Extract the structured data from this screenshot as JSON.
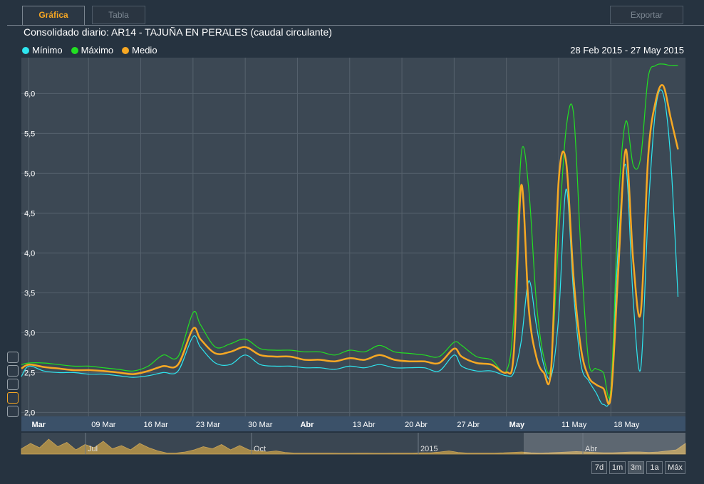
{
  "tabs": [
    {
      "label": "Gráfica",
      "active": true
    },
    {
      "label": "Tabla",
      "active": false
    }
  ],
  "export_label": "Exportar",
  "date_range": "28 Feb 2015 - 27 May 2015",
  "range_buttons": [
    {
      "label": "7d",
      "selected": false
    },
    {
      "label": "1m",
      "selected": false
    },
    {
      "label": "3m",
      "selected": true
    },
    {
      "label": "1a",
      "selected": false
    },
    {
      "label": "Máx",
      "selected": false
    }
  ],
  "side_icons": [
    "chart-type-icon",
    "line-chart-icon",
    "bar-chart-icon",
    "area-chart-icon",
    "max-icon"
  ],
  "navigator": {
    "labels": [
      "Jul",
      "Oct",
      "2015",
      "Abr"
    ]
  },
  "chart_data": {
    "type": "line",
    "title": "Consolidado diario: AR14 - TAJUÑA EN PERALES (caudal circulante)",
    "x_tick_labels": [
      {
        "date": "2015-03-01",
        "label": "Mar",
        "bold": true
      },
      {
        "date": "2015-03-09",
        "label": "09 Mar",
        "bold": false
      },
      {
        "date": "2015-03-16",
        "label": "16 Mar",
        "bold": false
      },
      {
        "date": "2015-03-23",
        "label": "23 Mar",
        "bold": false
      },
      {
        "date": "2015-03-30",
        "label": "30 Mar",
        "bold": false
      },
      {
        "date": "2015-04-06",
        "label": "Abr",
        "bold": true
      },
      {
        "date": "2015-04-13",
        "label": "13 Abr",
        "bold": false
      },
      {
        "date": "2015-04-20",
        "label": "20 Abr",
        "bold": false
      },
      {
        "date": "2015-04-27",
        "label": "27 Abr",
        "bold": false
      },
      {
        "date": "2015-05-04",
        "label": "May",
        "bold": true
      },
      {
        "date": "2015-05-11",
        "label": "11 May",
        "bold": false
      },
      {
        "date": "2015-05-18",
        "label": "18 May",
        "bold": false
      }
    ],
    "y_tick_labels": [
      "2,0",
      "2,5",
      "3,0",
      "3,5",
      "4,0",
      "4,5",
      "5,0",
      "5,5",
      "6,0"
    ],
    "ylim": [
      1.95,
      6.45
    ],
    "xlim": [
      "2015-02-28",
      "2015-05-28"
    ],
    "grid": true,
    "legend_position": "top-left",
    "x": [
      "2015-02-28",
      "2015-03-01",
      "2015-03-03",
      "2015-03-05",
      "2015-03-07",
      "2015-03-09",
      "2015-03-11",
      "2015-03-13",
      "2015-03-15",
      "2015-03-17",
      "2015-03-19",
      "2015-03-21",
      "2015-03-23",
      "2015-03-24",
      "2015-03-26",
      "2015-03-28",
      "2015-03-30",
      "2015-04-01",
      "2015-04-03",
      "2015-04-05",
      "2015-04-07",
      "2015-04-09",
      "2015-04-11",
      "2015-04-13",
      "2015-04-15",
      "2015-04-17",
      "2015-04-19",
      "2015-04-21",
      "2015-04-23",
      "2015-04-25",
      "2015-04-27",
      "2015-04-28",
      "2015-04-30",
      "2015-05-02",
      "2015-05-04",
      "2015-05-05",
      "2015-05-06",
      "2015-05-07",
      "2015-05-08",
      "2015-05-09",
      "2015-05-10",
      "2015-05-11",
      "2015-05-12",
      "2015-05-13",
      "2015-05-14",
      "2015-05-15",
      "2015-05-16",
      "2015-05-17",
      "2015-05-18",
      "2015-05-19",
      "2015-05-20",
      "2015-05-21",
      "2015-05-22",
      "2015-05-23",
      "2015-05-24",
      "2015-05-25",
      "2015-05-26",
      "2015-05-27"
    ],
    "series": [
      {
        "name": "Mínimo",
        "color": "#2ee6f0",
        "values": [
          2.45,
          2.58,
          2.52,
          2.5,
          2.5,
          2.48,
          2.48,
          2.46,
          2.44,
          2.46,
          2.5,
          2.52,
          2.95,
          2.82,
          2.62,
          2.6,
          2.72,
          2.6,
          2.58,
          2.58,
          2.56,
          2.56,
          2.54,
          2.58,
          2.56,
          2.6,
          2.56,
          2.56,
          2.56,
          2.52,
          2.72,
          2.58,
          2.52,
          2.52,
          2.46,
          2.5,
          2.9,
          3.65,
          3.1,
          2.6,
          2.45,
          3.2,
          4.8,
          3.5,
          2.6,
          2.4,
          2.25,
          2.1,
          2.3,
          4.1,
          5.1,
          3.4,
          2.55,
          4.5,
          5.8,
          6.0,
          5.2,
          3.45
        ]
      },
      {
        "name": "Máximo",
        "color": "#22e022",
        "values": [
          2.6,
          2.62,
          2.62,
          2.6,
          2.58,
          2.58,
          2.56,
          2.54,
          2.52,
          2.58,
          2.72,
          2.7,
          3.25,
          3.1,
          2.82,
          2.86,
          2.92,
          2.8,
          2.78,
          2.78,
          2.76,
          2.76,
          2.72,
          2.78,
          2.76,
          2.84,
          2.76,
          2.74,
          2.72,
          2.7,
          2.88,
          2.84,
          2.7,
          2.66,
          2.52,
          3.2,
          5.25,
          4.8,
          3.4,
          2.7,
          2.6,
          4.2,
          5.55,
          5.75,
          4.0,
          2.65,
          2.55,
          2.5,
          2.3,
          4.6,
          5.65,
          5.1,
          5.2,
          6.2,
          6.35,
          6.37,
          6.35,
          6.35
        ]
      },
      {
        "name": "Medio",
        "color": "#f7a823",
        "values": [
          2.55,
          2.6,
          2.57,
          2.55,
          2.53,
          2.53,
          2.52,
          2.5,
          2.48,
          2.52,
          2.58,
          2.6,
          3.05,
          2.92,
          2.74,
          2.76,
          2.82,
          2.72,
          2.7,
          2.7,
          2.66,
          2.66,
          2.64,
          2.68,
          2.66,
          2.72,
          2.66,
          2.64,
          2.64,
          2.62,
          2.8,
          2.7,
          2.62,
          2.6,
          2.5,
          2.75,
          4.85,
          3.3,
          2.7,
          2.5,
          2.55,
          4.9,
          5.15,
          3.7,
          2.8,
          2.45,
          2.35,
          2.3,
          2.2,
          3.8,
          5.3,
          3.9,
          3.25,
          5.2,
          5.9,
          6.1,
          5.7,
          5.3
        ]
      }
    ],
    "navigator_series": [
      0.25,
      0.5,
      0.3,
      0.7,
      0.35,
      0.55,
      0.2,
      0.45,
      0.3,
      0.6,
      0.25,
      0.4,
      0.2,
      0.5,
      0.3,
      0.15,
      0.05,
      0.05,
      0.1,
      0.2,
      0.35,
      0.25,
      0.45,
      0.2,
      0.4,
      0.2,
      0.15,
      0.1,
      0.15,
      0.08,
      0.05,
      0.05,
      0.05,
      0.05,
      0.05,
      0.04,
      0.04,
      0.05,
      0.05,
      0.04,
      0.04,
      0.05,
      0.05,
      0.05,
      0.06,
      0.06,
      0.1,
      0.15,
      0.08,
      0.05,
      0.05,
      0.05,
      0.05,
      0.06,
      0.08,
      0.1,
      0.06,
      0.05,
      0.06,
      0.08,
      0.1,
      0.12,
      0.1,
      0.08,
      0.06,
      0.06,
      0.08,
      0.1,
      0.1,
      0.08,
      0.1,
      0.15,
      0.2,
      0.5
    ]
  }
}
